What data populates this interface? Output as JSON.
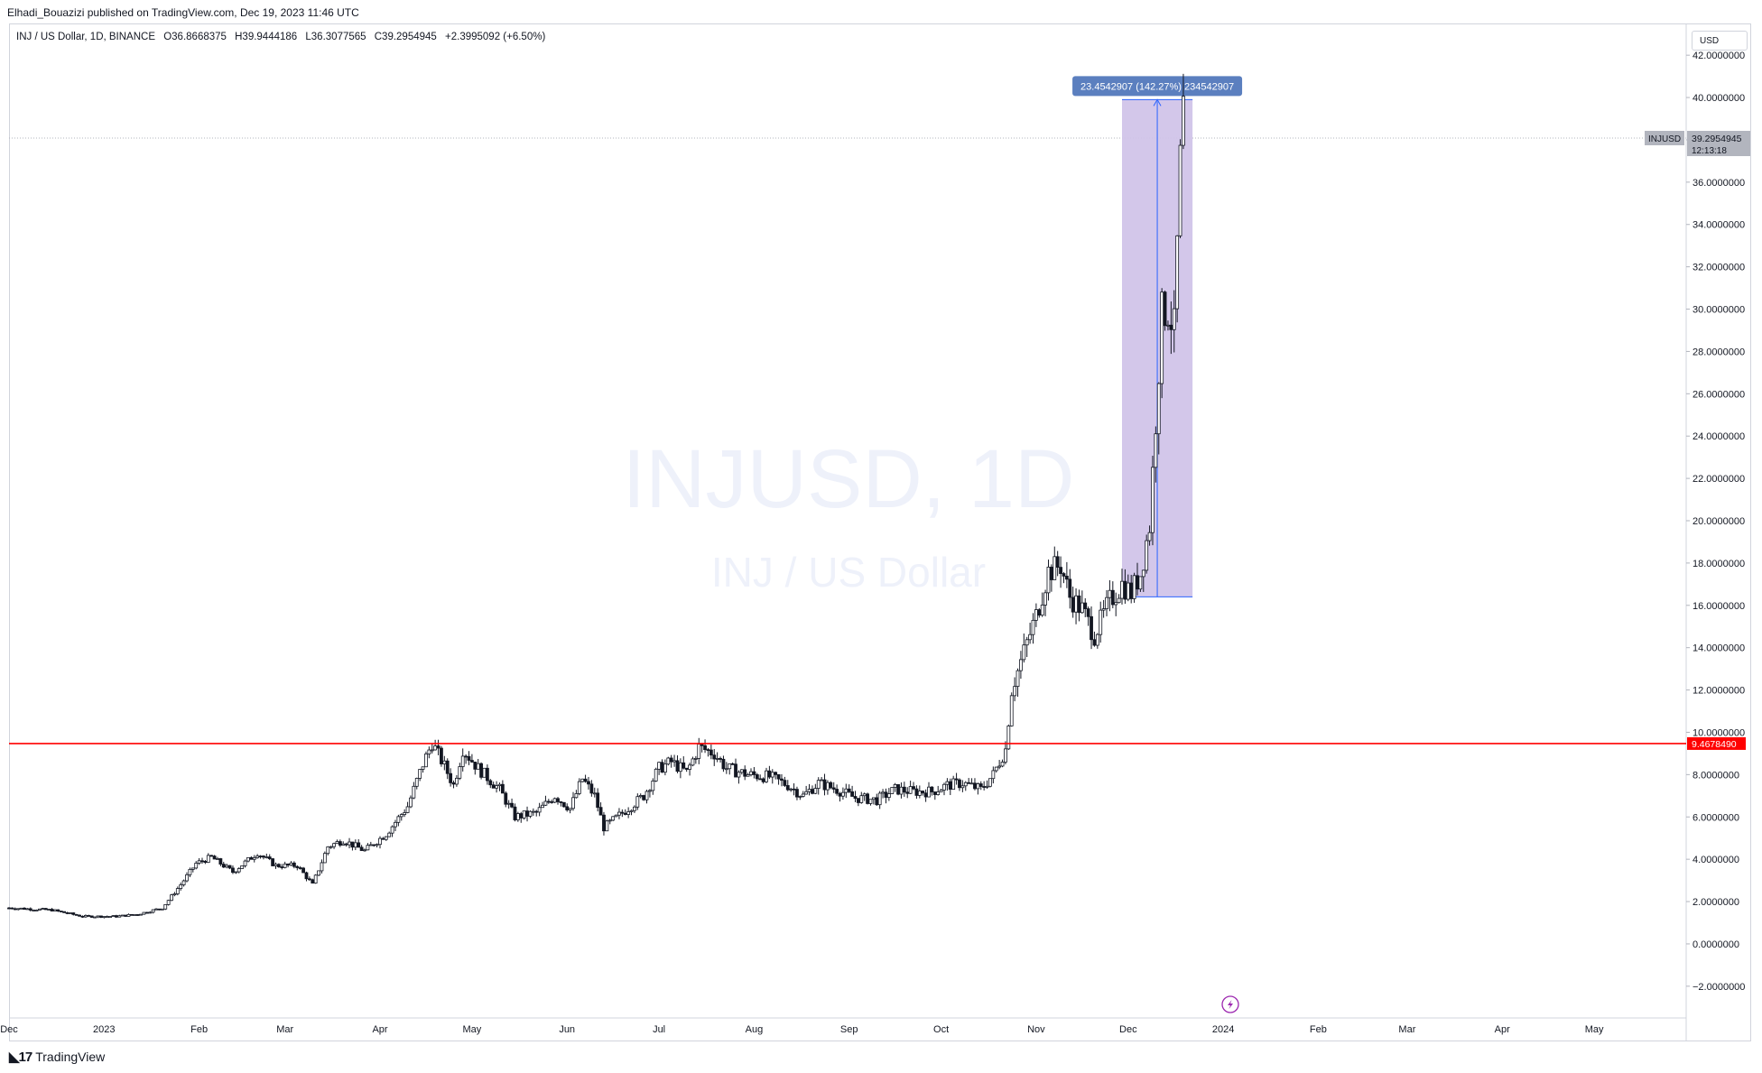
{
  "header": {
    "published": "Elhadi_Bouazizi published on TradingView.com, Dec 19, 2023 11:46 UTC"
  },
  "legend": {
    "symbol": "INJ / US Dollar, 1D, BINANCE",
    "open": "O36.8668375",
    "high": "H39.9444186",
    "low": "L36.3077565",
    "close": "C39.2954945",
    "change": "+2.3995092 (+6.50%)"
  },
  "currency_button": "USD",
  "watermark": {
    "line1": "INJUSD, 1D",
    "line2": "INJ / US Dollar"
  },
  "footer": {
    "logo_text": "TradingView"
  },
  "colors": {
    "up": "#131722",
    "down": "#131722",
    "horizontal_line": "#ff0000",
    "range_fill": "#d1c4e9",
    "range_line": "#2962ff",
    "range_label_bg": "#5b7fbf",
    "price_tag_bg": "#b2b5be",
    "accent_icon": "#9c27b0"
  },
  "chart_data": {
    "type": "candlestick",
    "symbol": "INJUSD",
    "timeframe": "1D",
    "y_axis": {
      "ticks": [
        "42.0000000",
        "40.0000000",
        "38.0000000",
        "36.0000000",
        "34.0000000",
        "32.0000000",
        "30.0000000",
        "28.0000000",
        "26.0000000",
        "24.0000000",
        "22.0000000",
        "20.0000000",
        "18.0000000",
        "16.0000000",
        "14.0000000",
        "12.0000000",
        "10.0000000",
        "8.0000000",
        "6.0000000",
        "4.0000000",
        "2.0000000",
        "0.0000000",
        "−2.0000000"
      ],
      "ylim": [
        -3.5,
        43.5
      ]
    },
    "x_axis": {
      "ticks": [
        "Dec",
        "2023",
        "Feb",
        "Mar",
        "Apr",
        "May",
        "Jun",
        "Jul",
        "Aug",
        "Sep",
        "Oct",
        "Nov",
        "Dec",
        "2024",
        "Feb",
        "Mar",
        "Apr",
        "May"
      ],
      "start": "2022-12-01",
      "end": "2024-05-31"
    },
    "last_price": {
      "symbol": "INJUSD",
      "value": "39.2954945",
      "countdown": "12:13:18"
    },
    "horizontal_line": {
      "value": 9.467849,
      "label": "9.4678490"
    },
    "price_range": {
      "from": 16.4,
      "to": 39.9,
      "start": "2023-11-29",
      "end": "2023-12-22",
      "label": "23.4542907 (142.27%) 234542907"
    },
    "close_path": [
      [
        "2022-12-01",
        1.7
      ],
      [
        "2022-12-15",
        1.6
      ],
      [
        "2022-12-25",
        1.3
      ],
      [
        "2023-01-05",
        1.3
      ],
      [
        "2023-01-12",
        1.4
      ],
      [
        "2023-01-20",
        1.7
      ],
      [
        "2023-01-26",
        2.8
      ],
      [
        "2023-01-31",
        3.8
      ],
      [
        "2023-02-05",
        4.1
      ],
      [
        "2023-02-12",
        3.4
      ],
      [
        "2023-02-20",
        4.3
      ],
      [
        "2023-02-26",
        3.7
      ],
      [
        "2023-03-05",
        3.7
      ],
      [
        "2023-03-10",
        2.8
      ],
      [
        "2023-03-15",
        4.6
      ],
      [
        "2023-03-20",
        4.9
      ],
      [
        "2023-03-27",
        4.4
      ],
      [
        "2023-04-03",
        5.2
      ],
      [
        "2023-04-10",
        6.5
      ],
      [
        "2023-04-15",
        8.5
      ],
      [
        "2023-04-18",
        9.5
      ],
      [
        "2023-04-22",
        8.4
      ],
      [
        "2023-04-25",
        7.5
      ],
      [
        "2023-04-28",
        9.2
      ],
      [
        "2023-05-03",
        8.3
      ],
      [
        "2023-05-10",
        7.3
      ],
      [
        "2023-05-15",
        6.0
      ],
      [
        "2023-05-22",
        6.2
      ],
      [
        "2023-05-28",
        7.0
      ],
      [
        "2023-06-02",
        6.4
      ],
      [
        "2023-06-06",
        7.8
      ],
      [
        "2023-06-10",
        7.0
      ],
      [
        "2023-06-13",
        5.5
      ],
      [
        "2023-06-20",
        6.3
      ],
      [
        "2023-06-26",
        7.0
      ],
      [
        "2023-07-01",
        8.3
      ],
      [
        "2023-07-05",
        8.6
      ],
      [
        "2023-07-10",
        8.1
      ],
      [
        "2023-07-14",
        9.3
      ],
      [
        "2023-07-19",
        9.0
      ],
      [
        "2023-07-23",
        8.3
      ],
      [
        "2023-07-30",
        8.0
      ],
      [
        "2023-08-06",
        7.9
      ],
      [
        "2023-08-12",
        7.5
      ],
      [
        "2023-08-17",
        7.0
      ],
      [
        "2023-08-22",
        7.6
      ],
      [
        "2023-08-28",
        7.3
      ],
      [
        "2023-09-03",
        6.9
      ],
      [
        "2023-09-10",
        6.8
      ],
      [
        "2023-09-16",
        7.3
      ],
      [
        "2023-09-22",
        7.2
      ],
      [
        "2023-09-28",
        7.2
      ],
      [
        "2023-10-03",
        7.5
      ],
      [
        "2023-10-08",
        7.6
      ],
      [
        "2023-10-14",
        7.3
      ],
      [
        "2023-10-18",
        8.0
      ],
      [
        "2023-10-22",
        9.2
      ],
      [
        "2023-10-24",
        12.0
      ],
      [
        "2023-10-28",
        13.8
      ],
      [
        "2023-11-01",
        15.5
      ],
      [
        "2023-11-05",
        17.6
      ],
      [
        "2023-11-09",
        17.9
      ],
      [
        "2023-11-12",
        16.4
      ],
      [
        "2023-11-16",
        15.8
      ],
      [
        "2023-11-20",
        14.6
      ],
      [
        "2023-11-25",
        16.2
      ],
      [
        "2023-11-29",
        17.0
      ],
      [
        "2023-12-02",
        16.6
      ],
      [
        "2023-12-05",
        17.5
      ],
      [
        "2023-12-08",
        19.8
      ],
      [
        "2023-12-10",
        24.8
      ],
      [
        "2023-12-12",
        29.8
      ],
      [
        "2023-12-14",
        30.0
      ],
      [
        "2023-12-16",
        29.0
      ],
      [
        "2023-12-17",
        33.0
      ],
      [
        "2023-12-18",
        36.9
      ],
      [
        "2023-12-19",
        39.3
      ]
    ]
  }
}
